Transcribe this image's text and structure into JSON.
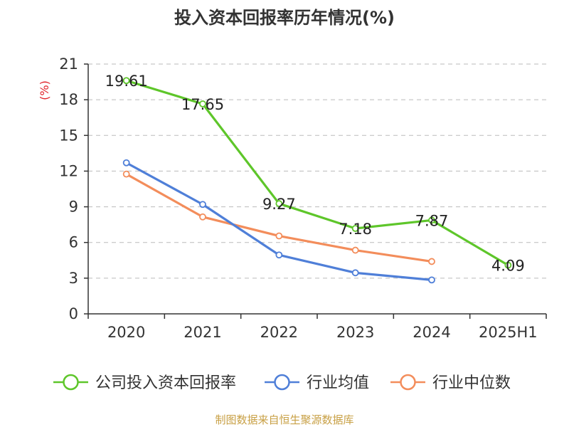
{
  "chart_data": {
    "type": "line",
    "title": "投入资本回报率历年情况(%)",
    "ylabel": "(%)",
    "xlabel": "",
    "categories": [
      "2020",
      "2021",
      "2022",
      "2023",
      "2024",
      "2025H1"
    ],
    "ylim": [
      0,
      21
    ],
    "yticks": [
      0,
      3,
      6,
      9,
      12,
      15,
      18,
      21
    ],
    "grid": true,
    "legend_position": "bottom",
    "series": [
      {
        "name": "公司投入资本回报率",
        "color": "#5ec62a",
        "values": [
          19.61,
          17.65,
          9.27,
          7.18,
          7.87,
          4.09
        ],
        "data_labels": [
          "19.61",
          "17.65",
          "9.27",
          "7.18",
          "7.87",
          "4.09"
        ]
      },
      {
        "name": "行业均值",
        "color": "#4f7fd8",
        "values": [
          12.7,
          9.2,
          4.95,
          3.45,
          2.85,
          null
        ]
      },
      {
        "name": "行业中位数",
        "color": "#f38d5b",
        "values": [
          11.75,
          8.15,
          6.55,
          5.35,
          4.4,
          null
        ]
      }
    ]
  },
  "footer": {
    "source": "制图数据来自恒生聚源数据库"
  }
}
